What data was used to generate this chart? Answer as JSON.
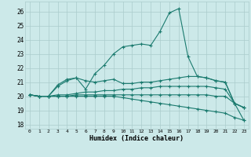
{
  "xlabel": "Humidex (Indice chaleur)",
  "background_color": "#cce9e9",
  "grid_color": "#aacccc",
  "line_color": "#1a7a6e",
  "xlim": [
    -0.5,
    23.5
  ],
  "ylim": [
    17.7,
    26.7
  ],
  "yticks": [
    18,
    19,
    20,
    21,
    22,
    23,
    24,
    25,
    26
  ],
  "xticks": [
    0,
    1,
    2,
    3,
    4,
    5,
    6,
    7,
    8,
    9,
    10,
    11,
    12,
    13,
    14,
    15,
    16,
    17,
    18,
    19,
    20,
    21,
    22,
    23
  ],
  "series": [
    [
      20.1,
      20.0,
      20.0,
      20.8,
      21.2,
      21.3,
      20.5,
      21.6,
      22.2,
      23.0,
      23.5,
      23.6,
      23.7,
      23.6,
      24.6,
      25.9,
      26.2,
      22.8,
      21.4,
      21.3,
      21.1,
      21.0,
      19.5,
      19.2
    ],
    [
      20.1,
      20.0,
      20.0,
      20.7,
      21.1,
      21.3,
      21.1,
      21.0,
      21.1,
      21.2,
      20.9,
      20.9,
      21.0,
      21.0,
      21.1,
      21.2,
      21.3,
      21.4,
      21.4,
      21.3,
      21.1,
      21.0,
      19.5,
      19.2
    ],
    [
      20.1,
      20.0,
      20.0,
      20.1,
      20.1,
      20.2,
      20.3,
      20.3,
      20.4,
      20.4,
      20.5,
      20.5,
      20.6,
      20.6,
      20.7,
      20.7,
      20.7,
      20.7,
      20.7,
      20.7,
      20.6,
      20.5,
      19.5,
      19.2
    ],
    [
      20.1,
      20.0,
      20.0,
      20.0,
      20.0,
      20.1,
      20.1,
      20.1,
      20.1,
      20.1,
      20.1,
      20.1,
      20.1,
      20.1,
      20.1,
      20.1,
      20.1,
      20.1,
      20.1,
      20.1,
      20.0,
      20.0,
      19.5,
      18.3
    ],
    [
      20.1,
      20.0,
      20.0,
      20.0,
      20.0,
      20.0,
      20.0,
      20.0,
      20.0,
      20.0,
      19.9,
      19.8,
      19.7,
      19.6,
      19.5,
      19.4,
      19.3,
      19.2,
      19.1,
      19.0,
      18.9,
      18.8,
      18.5,
      18.3
    ]
  ]
}
